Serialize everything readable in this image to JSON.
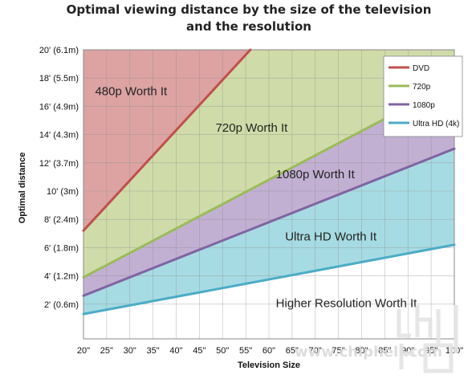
{
  "chart_data": {
    "type": "area",
    "title_lines": [
      "Optimal viewing distance by the size of the television",
      "and the resolution"
    ],
    "xlabel": "Television Size",
    "ylabel": "Optimal distance",
    "x_ticks": [
      "20\"",
      "25\"",
      "30\"",
      "35\"",
      "40\"",
      "45\"",
      "50\"",
      "55\"",
      "60\"",
      "65\"",
      "70\"",
      "75\"",
      "80\"",
      "85\"",
      "90\"",
      "95\"",
      "100\""
    ],
    "y_ticks": [
      "2' (0.6m)",
      "4' (1.2m)",
      "6' (1.8m)",
      "8' (2.4m)",
      "10' (3m)",
      "12' (3.7m)",
      "14' (4.3m)",
      "16' (4.9m)",
      "18' (5.5m)",
      "20' (6.1m)"
    ],
    "x_range": [
      20,
      100
    ],
    "y_range": [
      0,
      20
    ],
    "grid": true,
    "legend_position": "top-right",
    "series": [
      {
        "name": "DVD",
        "color": "#c0504d",
        "fill": "#dda3a3",
        "x": [
          20,
          56
        ],
        "y": [
          7.2,
          20
        ]
      },
      {
        "name": "720p",
        "color": "#9bbb59",
        "fill": "#cfdca9",
        "x": [
          20,
          100
        ],
        "y": [
          3.9,
          17.7
        ]
      },
      {
        "name": "1080p",
        "color": "#8064a2",
        "fill": "#c2b0d3",
        "x": [
          20,
          100
        ],
        "y": [
          2.6,
          13
        ]
      },
      {
        "name": "Ultra HD (4k)",
        "color": "#4bacc6",
        "fill": "#a7dbe3",
        "x": [
          20,
          100
        ],
        "y": [
          1.3,
          6.2
        ]
      }
    ],
    "region_labels": [
      {
        "text": "480p Worth It",
        "x": 22.5,
        "y": 16.8
      },
      {
        "text": "720p Worth It",
        "x": 48.5,
        "y": 14.2
      },
      {
        "text": "1080p Worth It",
        "x": 61.5,
        "y": 10.9
      },
      {
        "text": "Ultra HD Worth It",
        "x": 63.5,
        "y": 6.5
      },
      {
        "text": "Higher Resolution Worth It",
        "x": 61.5,
        "y": 1.8
      }
    ]
  },
  "watermark": {
    "text": "www.chiphell.com"
  }
}
